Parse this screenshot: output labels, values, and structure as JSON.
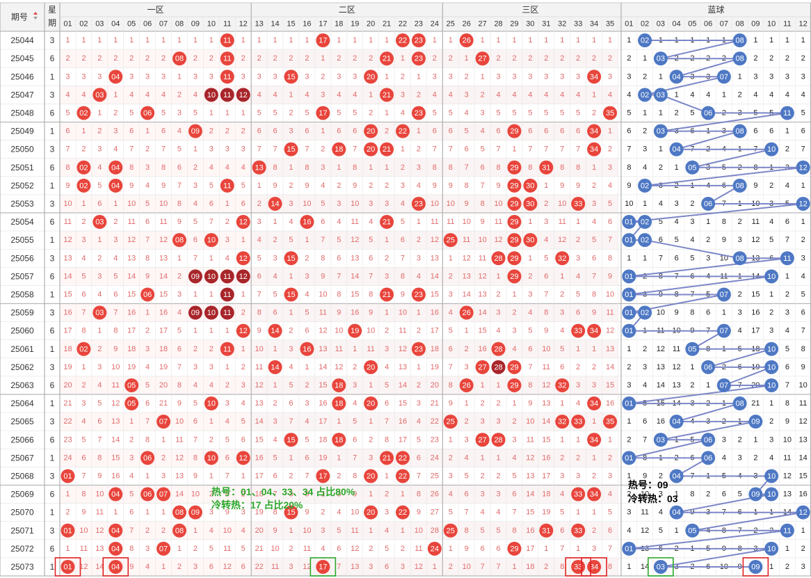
{
  "header": {
    "col_issue": "期号",
    "col_week": "星期",
    "zone1": "一区",
    "zone2": "二区",
    "zone3": "三区",
    "zone_blue": "蓝球",
    "red_numbers": [
      "01",
      "02",
      "03",
      "04",
      "05",
      "06",
      "07",
      "08",
      "09",
      "10",
      "11",
      "12",
      "13",
      "14",
      "15",
      "16",
      "17",
      "18",
      "19",
      "20",
      "21",
      "22",
      "23",
      "24",
      "25",
      "26",
      "27",
      "28",
      "29",
      "30",
      "31",
      "32",
      "33",
      "34",
      "35"
    ],
    "blue_numbers": [
      "01",
      "02",
      "03",
      "04",
      "05",
      "06",
      "07",
      "08",
      "09",
      "10",
      "11",
      "12"
    ]
  },
  "colors": {
    "red_ball": "#e8453c",
    "dark_red_ball": "#a8252a",
    "blue_ball": "#4e78c4",
    "blue_line": "#7b86c8",
    "omission_text": "#e06a6a",
    "annotation_red": "#e02020",
    "annotation_green": "#2ba82b"
  },
  "chart_data": {
    "type": "table",
    "title": "",
    "rows": [
      {
        "issue": "25044",
        "week": "3",
        "red": [
          11,
          17,
          22,
          23,
          26
        ],
        "blue": [
          2,
          8
        ]
      },
      {
        "issue": "25045",
        "week": "6",
        "red": [
          8,
          11,
          21,
          23,
          27
        ],
        "blue": [
          3,
          8
        ]
      },
      {
        "issue": "25046",
        "week": "1",
        "red": [
          4,
          11,
          15,
          20,
          34
        ],
        "blue": [
          4,
          7
        ]
      },
      {
        "issue": "25047",
        "week": "3",
        "red": [
          3,
          10,
          11,
          12,
          21
        ],
        "blue": [
          2,
          3
        ]
      },
      {
        "issue": "25048",
        "week": "6",
        "red": [
          2,
          6,
          17,
          23,
          35
        ],
        "blue": [
          6,
          11
        ]
      },
      {
        "issue": "25049",
        "week": "1",
        "red": [
          9,
          20,
          22,
          29,
          34
        ],
        "blue": [
          3,
          8
        ]
      },
      {
        "issue": "25050",
        "week": "3",
        "red": [
          15,
          18,
          20,
          21,
          34
        ],
        "blue": [
          4,
          10
        ]
      },
      {
        "issue": "25051",
        "week": "6",
        "red": [
          2,
          4,
          13,
          29,
          31
        ],
        "blue": [
          5,
          12
        ]
      },
      {
        "issue": "25052",
        "week": "1",
        "red": [
          2,
          4,
          11,
          29,
          30
        ],
        "blue": [
          2,
          8
        ]
      },
      {
        "issue": "25053",
        "week": "3",
        "red": [
          14,
          23,
          29,
          30,
          33
        ],
        "blue": [
          6,
          12
        ]
      },
      {
        "issue": "25054",
        "week": "6",
        "red": [
          3,
          12,
          16,
          21,
          29
        ],
        "blue": [
          1,
          2
        ]
      },
      {
        "issue": "25055",
        "week": "1",
        "red": [
          8,
          10,
          25,
          29,
          30
        ],
        "blue": [
          1,
          2
        ]
      },
      {
        "issue": "25056",
        "week": "3",
        "red": [
          12,
          15,
          28,
          29,
          32
        ],
        "blue": [
          8,
          11
        ]
      },
      {
        "issue": "25057",
        "week": "6",
        "red": [
          9,
          10,
          11,
          12,
          29
        ],
        "blue": [
          1,
          10
        ]
      },
      {
        "issue": "25058",
        "week": "1",
        "red": [
          6,
          11,
          15,
          21,
          23
        ],
        "blue": [
          1,
          7
        ]
      },
      {
        "issue": "25059",
        "week": "3",
        "red": [
          3,
          9,
          10,
          11,
          26
        ],
        "blue": [
          1,
          2
        ]
      },
      {
        "issue": "25060",
        "week": "6",
        "red": [
          12,
          14,
          19,
          33,
          34
        ],
        "blue": [
          1,
          7
        ]
      },
      {
        "issue": "25061",
        "week": "1",
        "red": [
          2,
          11,
          16,
          23,
          28
        ],
        "blue": [
          5,
          10
        ]
      },
      {
        "issue": "25062",
        "week": "3",
        "red": [
          14,
          20,
          27,
          28,
          29
        ],
        "blue": [
          6,
          10
        ]
      },
      {
        "issue": "25063",
        "week": "6",
        "red": [
          5,
          18,
          26,
          29,
          32
        ],
        "blue": [
          7,
          10
        ]
      },
      {
        "issue": "25064",
        "week": "1",
        "red": [
          5,
          10,
          18,
          20,
          34
        ],
        "blue": [
          1,
          8
        ]
      },
      {
        "issue": "25065",
        "week": "3",
        "red": [
          7,
          25,
          32,
          33,
          35
        ],
        "blue": [
          4,
          9
        ]
      },
      {
        "issue": "25066",
        "week": "6",
        "red": [
          15,
          18,
          27,
          28,
          34
        ],
        "blue": [
          3,
          6
        ]
      },
      {
        "issue": "25067",
        "week": "1",
        "red": [
          6,
          10,
          12,
          21,
          22
        ],
        "blue": [
          1,
          6
        ]
      },
      {
        "issue": "25068",
        "week": "3",
        "red": [
          1,
          17,
          20,
          22
        ],
        "blue": [
          4,
          10
        ]
      },
      {
        "issue": "25069",
        "week": "6",
        "red": [
          4,
          6,
          7,
          33,
          34
        ],
        "blue": [
          9,
          10
        ]
      },
      {
        "issue": "25070",
        "week": "1",
        "red": [
          8,
          9,
          15,
          20,
          22
        ],
        "blue": [
          4,
          12
        ]
      },
      {
        "issue": "25071",
        "week": "3",
        "red": [
          1,
          4,
          8,
          25,
          31,
          33
        ],
        "blue": [
          5,
          11
        ]
      },
      {
        "issue": "25072",
        "week": "6",
        "red": [
          4,
          7,
          24,
          29
        ],
        "blue": [
          1,
          10
        ]
      },
      {
        "issue": "25073",
        "week": "1",
        "red": [
          1,
          4,
          17,
          33,
          34
        ],
        "blue": [
          3,
          9
        ]
      }
    ],
    "dark_red_cells": [
      [
        "25047",
        10
      ],
      [
        "25047",
        11
      ],
      [
        "25047",
        12
      ],
      [
        "25057",
        9
      ],
      [
        "25057",
        10
      ],
      [
        "25057",
        11
      ],
      [
        "25057",
        12
      ],
      [
        "25058",
        11
      ],
      [
        "25059",
        9
      ],
      [
        "25059",
        10
      ],
      [
        "25059",
        11
      ],
      [
        "25062",
        28
      ]
    ],
    "predict_boxes_red": [
      1,
      4,
      33,
      34
    ],
    "predict_boxes_green": [
      17
    ],
    "predict_blue_red": [
      9
    ],
    "predict_blue_green": [
      3
    ],
    "annotations": {
      "red_hot": "热号：01、04、33、34 占比80%",
      "red_cold": "冷转热：17 占比20%",
      "blue_hot": "热号：09",
      "blue_cold": "冷转热：03"
    }
  }
}
